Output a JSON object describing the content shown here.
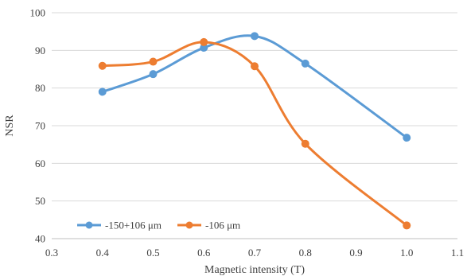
{
  "chart_data": {
    "type": "line",
    "title": "",
    "xlabel": "Magnetic intensity (T)",
    "ylabel": "NSR",
    "xlim": [
      0.3,
      1.1
    ],
    "ylim": [
      40,
      100
    ],
    "xticks": [
      0.3,
      0.4,
      0.5,
      0.6,
      0.7,
      0.8,
      0.9,
      1.0,
      1.1
    ],
    "xtick_labels": [
      "0.3",
      "0.4",
      "0.5",
      "0.6",
      "0.7",
      "0.8",
      "0.9",
      "1.0",
      "1.1"
    ],
    "yticks": [
      40,
      50,
      60,
      70,
      80,
      90,
      100
    ],
    "ytick_labels": [
      "40",
      "50",
      "60",
      "70",
      "80",
      "90",
      "100"
    ],
    "grid": "horizontal",
    "legend_position": "bottom-left",
    "series": [
      {
        "name": "-150+106 μm",
        "color": "#5B9BD5",
        "x": [
          0.4,
          0.5,
          0.6,
          0.7,
          0.8,
          1.0
        ],
        "y": [
          79.0,
          83.7,
          90.7,
          93.8,
          86.5,
          66.8
        ]
      },
      {
        "name": "-106 μm",
        "color": "#ED7D31",
        "x": [
          0.4,
          0.5,
          0.6,
          0.7,
          0.8,
          1.0
        ],
        "y": [
          85.9,
          87.0,
          92.2,
          85.8,
          65.2,
          43.5
        ]
      }
    ]
  }
}
